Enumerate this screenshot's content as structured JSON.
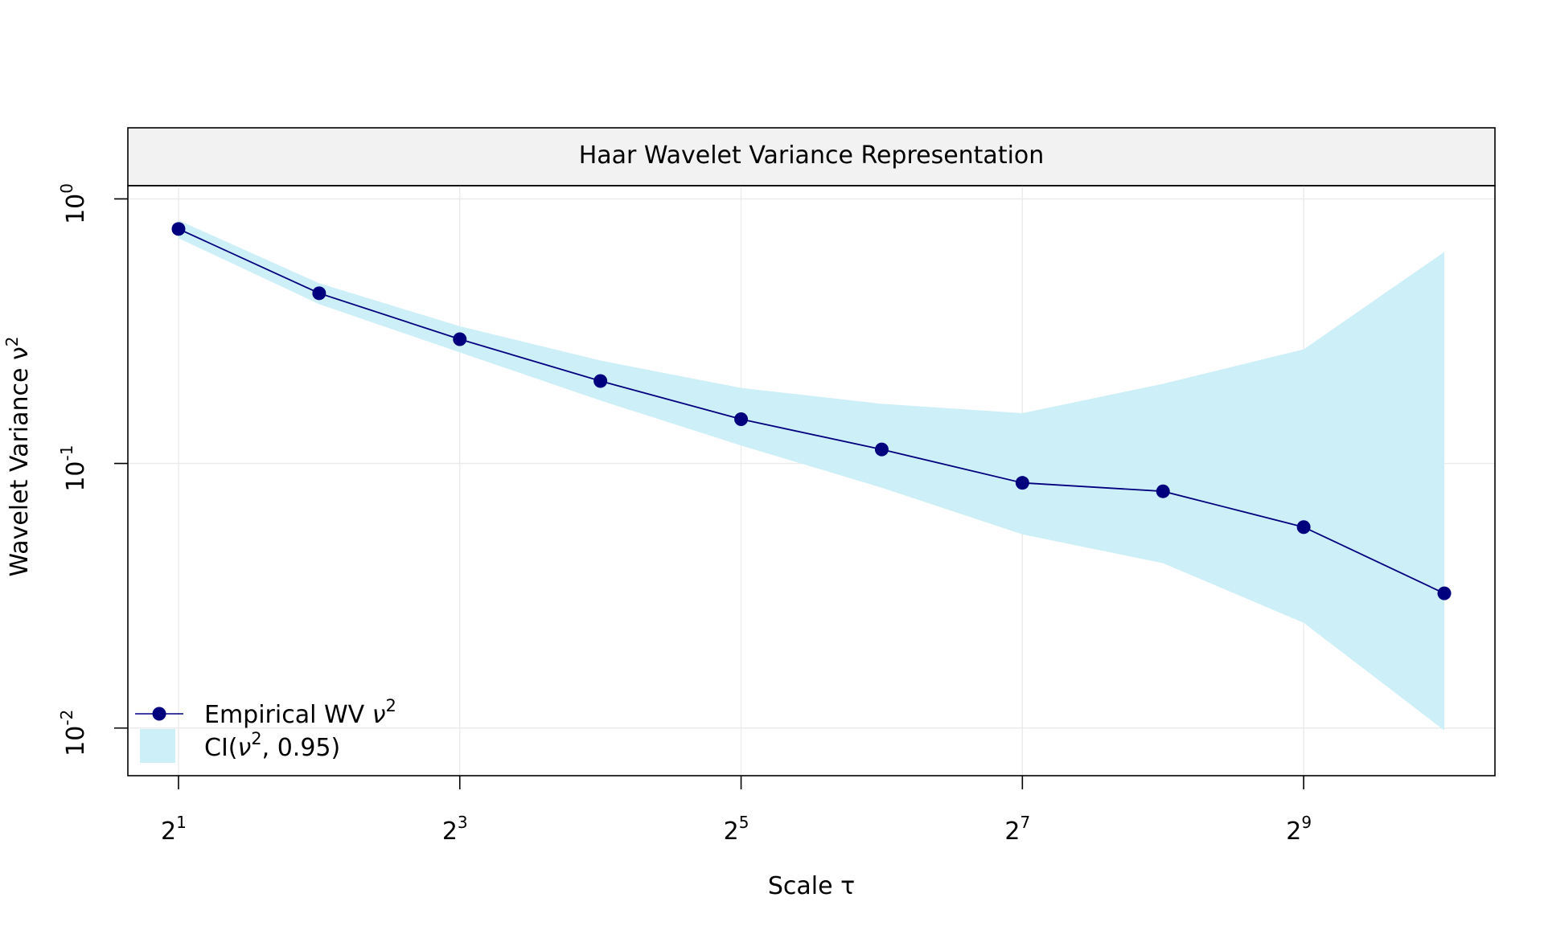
{
  "chart_data": {
    "type": "line",
    "title": "Haar Wavelet Variance Representation",
    "xlabel": "Scale",
    "xlabel_symbol": "τ",
    "ylabel": "Wavelet Variance",
    "ylabel_symbol": "ν",
    "ylabel_exponent": "2",
    "x_scale": "log2",
    "y_scale": "log10",
    "x_tick_base": "2",
    "x_tick_exponents": [
      "1",
      "3",
      "5",
      "7",
      "9"
    ],
    "y_tick_base": "10",
    "y_tick_exponents": [
      "0",
      "-1",
      "-2"
    ],
    "x": [
      2,
      4,
      8,
      16,
      32,
      64,
      128,
      256,
      512,
      1024
    ],
    "series": [
      {
        "name": "Empirical WV",
        "values": [
          0.77,
          0.44,
          0.295,
          0.205,
          0.147,
          0.113,
          0.0845,
          0.0785,
          0.0575,
          0.0323
        ],
        "color": "#00007f"
      }
    ],
    "ci": {
      "lower": [
        0.71,
        0.4,
        0.263,
        0.173,
        0.117,
        0.081,
        0.054,
        0.042,
        0.025,
        0.0098
      ],
      "upper": [
        0.83,
        0.48,
        0.33,
        0.245,
        0.193,
        0.168,
        0.155,
        0.2,
        0.27,
        0.63
      ],
      "color": "#cdeff7"
    },
    "legend": {
      "position": "bottom-left",
      "items": [
        {
          "label": "Empirical WV",
          "symbol": "ν",
          "exponent": "2"
        },
        {
          "label_prefix": "CI(",
          "symbol": "ν",
          "exponent": "2",
          "label_suffix": ", 0.95)"
        }
      ]
    },
    "xlim_log2": [
      0.64,
      10.36
    ],
    "ylim_log10": [
      -2.18,
      0.05
    ],
    "grid": true,
    "colors": {
      "strip": "#f2f2f2",
      "grid": "#ebebeb",
      "line": "#00007f",
      "band": "#cdeff7"
    }
  }
}
